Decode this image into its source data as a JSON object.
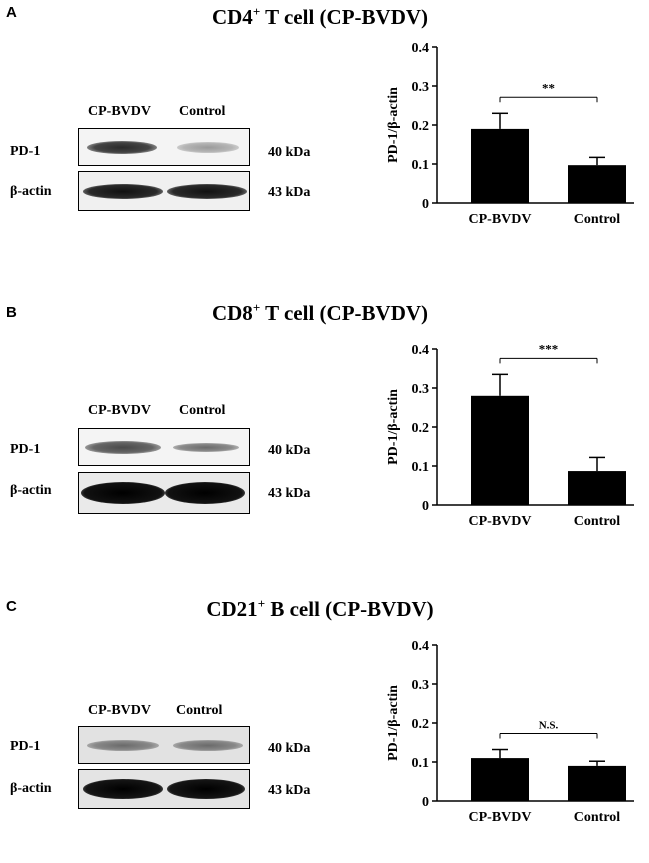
{
  "panels": [
    {
      "letter": "A",
      "title_prefix": "CD4",
      "title_sup": "+",
      "title_suffix": " T cell (CP-BVDV)",
      "blot": {
        "lanes": [
          "CP-BVDV",
          "Control"
        ],
        "rows": [
          {
            "label": "PD-1",
            "kda": "40 kDa"
          },
          {
            "label": "β-actin",
            "kda": "43 kDa"
          }
        ]
      }
    },
    {
      "letter": "B",
      "title_prefix": "CD8",
      "title_sup": "+",
      "title_suffix": " T cell (CP-BVDV)",
      "blot": {
        "lanes": [
          "CP-BVDV",
          "Control"
        ],
        "rows": [
          {
            "label": "PD-1",
            "kda": "40 kDa"
          },
          {
            "label": "β-actin",
            "kda": "43 kDa"
          }
        ]
      }
    },
    {
      "letter": "C",
      "title_prefix": "CD21",
      "title_sup": "+",
      "title_suffix": " B cell (CP-BVDV)",
      "blot": {
        "lanes": [
          "CP-BVDV",
          "Control"
        ],
        "rows": [
          {
            "label": "PD-1",
            "kda": "40 kDa"
          },
          {
            "label": "β-actin",
            "kda": "43 kDa"
          }
        ]
      }
    }
  ],
  "chart_data": [
    {
      "type": "bar",
      "categories": [
        "CP-BVDV",
        "Control"
      ],
      "values": [
        0.19,
        0.097
      ],
      "errors": [
        0.04,
        0.02
      ],
      "ylabel": "PD-1/β-actin",
      "ylim": [
        0,
        0.4
      ],
      "yticks": [
        "0",
        "0.1",
        "0.2",
        "0.3",
        "0.4"
      ],
      "significance": "**",
      "bar_color": "#000000"
    },
    {
      "type": "bar",
      "categories": [
        "CP-BVDV",
        "Control"
      ],
      "values": [
        0.28,
        0.087
      ],
      "errors": [
        0.055,
        0.035
      ],
      "ylabel": "PD-1/β-actin",
      "ylim": [
        0,
        0.4
      ],
      "yticks": [
        "0",
        "0.1",
        "0.2",
        "0.3",
        "0.4"
      ],
      "significance": "***",
      "bar_color": "#000000"
    },
    {
      "type": "bar",
      "categories": [
        "CP-BVDV",
        "Control"
      ],
      "values": [
        0.11,
        0.09
      ],
      "errors": [
        0.022,
        0.012
      ],
      "ylabel": "PD-1/β-actin",
      "ylim": [
        0,
        0.4
      ],
      "yticks": [
        "0",
        "0.1",
        "0.2",
        "0.3",
        "0.4"
      ],
      "significance": "N.S.",
      "bar_color": "#000000"
    }
  ]
}
